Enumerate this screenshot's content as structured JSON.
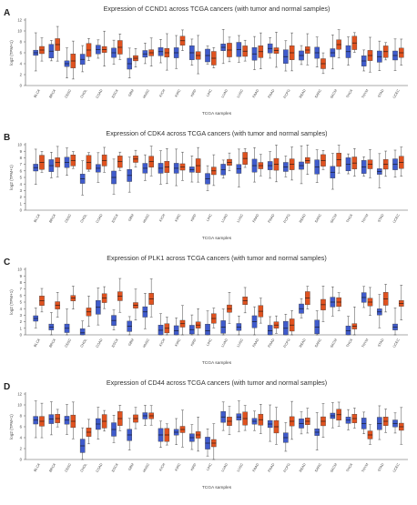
{
  "colors": {
    "tumor": "#e0521f",
    "normal": "#3f5bcc",
    "axis": "#555555"
  },
  "chart_data": [
    {
      "type": "box",
      "panel_letter": "A",
      "title": "Expression of CCND1 across TCGA cancers (with tumor and normal samples)",
      "xlabel": "TCGA samples",
      "ylabel": "log2 (TPM+1)",
      "ylim": [
        0,
        12
      ],
      "yticks": [
        0,
        2,
        4,
        6,
        8,
        10,
        12
      ],
      "categories": [
        "BLCA",
        "BRCA",
        "CESC",
        "CHOL",
        "COAD",
        "ESCA",
        "GBM",
        "HNSC",
        "KICH",
        "KIRC",
        "KIRP",
        "LIHC",
        "LUAD",
        "LUSC",
        "PAAD",
        "PRAD",
        "PCPG",
        "READ",
        "SARC",
        "SKCM",
        "THCA",
        "THYM",
        "STAD",
        "UCEC"
      ],
      "series": [
        {
          "name": "normal",
          "values": [
            6.0,
            6.3,
            4.0,
            4.8,
            6.6,
            6.0,
            4.0,
            5.8,
            6.2,
            6.0,
            6.0,
            5.5,
            7.0,
            6.6,
            5.8,
            6.8,
            5.3,
            5.5,
            6.0,
            6.0,
            6.2,
            4.5,
            5.3,
            5.5
          ]
        },
        {
          "name": "tumor",
          "values": [
            6.5,
            7.5,
            4.5,
            6.5,
            6.6,
            7.0,
            5.0,
            6.0,
            6.0,
            8.2,
            5.5,
            5.0,
            6.5,
            6.3,
            6.2,
            6.4,
            6.0,
            6.5,
            4.0,
            7.5,
            7.8,
            5.5,
            6.2,
            6.0
          ]
        }
      ]
    },
    {
      "type": "box",
      "panel_letter": "B",
      "title": "Expression of CDK4 across TCGA cancers (with tumor and normal samples)",
      "xlabel": "TCGA samples",
      "ylabel": "log2 (TPM+1)",
      "ylim": [
        0,
        10
      ],
      "yticks": [
        0,
        1,
        2,
        3,
        4,
        5,
        6,
        7,
        8,
        9,
        10
      ],
      "categories": [
        "BLCA",
        "BRCA",
        "CESC",
        "CHOL",
        "COAD",
        "ESCA",
        "GBM",
        "HNSC",
        "KICH",
        "KIRC",
        "KIRP",
        "LIHC",
        "LUAD",
        "LUSC",
        "PAAD",
        "PRAD",
        "PCPG",
        "READ",
        "SARC",
        "SKCM",
        "THCA",
        "THYM",
        "STAD",
        "UCEC"
      ],
      "series": [
        {
          "name": "normal",
          "values": [
            6.5,
            6.8,
            7.3,
            4.8,
            6.4,
            5.0,
            5.3,
            6.4,
            6.4,
            6.4,
            6.2,
            4.8,
            6.2,
            6.3,
            6.8,
            6.8,
            6.6,
            6.8,
            6.6,
            5.8,
            7.0,
            6.6,
            5.9,
            7.0
          ]
        },
        {
          "name": "tumor",
          "values": [
            7.3,
            7.3,
            7.6,
            7.3,
            7.6,
            7.4,
            7.8,
            7.4,
            6.6,
            6.6,
            6.8,
            6.0,
            7.3,
            7.9,
            6.8,
            7.0,
            7.0,
            7.6,
            7.6,
            7.7,
            7.2,
            7.0,
            7.0,
            7.3
          ]
        }
      ]
    },
    {
      "type": "box",
      "panel_letter": "C",
      "title": "Expression of PLK1 across TCGA cancers (with tumor and normal samples)",
      "xlabel": "TCGA samples",
      "ylabel": "log2 (TPM+1)",
      "ylim": [
        0,
        10
      ],
      "yticks": [
        0,
        1,
        2,
        3,
        4,
        5,
        6,
        7,
        8,
        9,
        10
      ],
      "categories": [
        "BLCA",
        "BRCA",
        "CESC",
        "CHOL",
        "COAD",
        "ESCA",
        "GBM",
        "HNSC",
        "KICH",
        "KIRC",
        "KIRP",
        "LIHC",
        "LUAD",
        "LUSC",
        "PAAD",
        "PRAD",
        "PCPG",
        "READ",
        "SARC",
        "SKCM",
        "THCA",
        "THYM",
        "STAD",
        "UCEC"
      ],
      "series": [
        {
          "name": "normal",
          "values": [
            2.5,
            1.2,
            1.0,
            0.3,
            4.2,
            2.2,
            1.3,
            3.5,
            0.7,
            0.6,
            0.8,
            0.6,
            1.2,
            1.2,
            2.0,
            0.6,
            1.0,
            4.0,
            1.2,
            5.0,
            0.6,
            5.7,
            3.5,
            1.2
          ]
        },
        {
          "name": "tumor",
          "values": [
            5.2,
            4.5,
            5.6,
            3.5,
            5.6,
            5.9,
            4.5,
            5.5,
            1.0,
            1.7,
            1.5,
            2.5,
            4.0,
            5.2,
            3.6,
            1.5,
            1.5,
            5.6,
            4.6,
            5.0,
            1.3,
            5.0,
            5.5,
            4.8
          ]
        }
      ]
    },
    {
      "type": "box",
      "panel_letter": "D",
      "title": "Expression of CD44 across TCGA cancers (with tumor and normal samples)",
      "xlabel": "TCGA samples",
      "ylabel": "log2 (TPM+1)",
      "ylim": [
        0,
        12
      ],
      "yticks": [
        0,
        2,
        4,
        6,
        8,
        10,
        12
      ],
      "categories": [
        "BLCA",
        "BRCA",
        "CESC",
        "CHOL",
        "COAD",
        "ESCA",
        "GBM",
        "HNSC",
        "KICH",
        "KIRC",
        "KIRP",
        "LIHC",
        "LUAD",
        "LUSC",
        "PAAD",
        "PRAD",
        "PCPG",
        "READ",
        "SARC",
        "SKCM",
        "THCA",
        "THYM",
        "STAD",
        "UCEC"
      ],
      "series": [
        {
          "name": "normal",
          "values": [
            7.2,
            7.4,
            7.2,
            2.5,
            6.5,
            5.5,
            4.5,
            8.0,
            4.5,
            5.0,
            4.0,
            3.0,
            7.8,
            7.8,
            7.0,
            6.5,
            4.0,
            6.6,
            5.0,
            8.0,
            7.2,
            6.6,
            6.6,
            6.6
          ]
        },
        {
          "name": "tumor",
          "values": [
            7.0,
            7.5,
            7.0,
            5.0,
            7.0,
            7.5,
            7.5,
            8.0,
            4.5,
            5.5,
            4.5,
            3.0,
            7.0,
            7.5,
            7.3,
            6.0,
            7.0,
            7.0,
            7.0,
            8.2,
            7.5,
            4.5,
            7.0,
            6.0
          ]
        }
      ]
    }
  ]
}
